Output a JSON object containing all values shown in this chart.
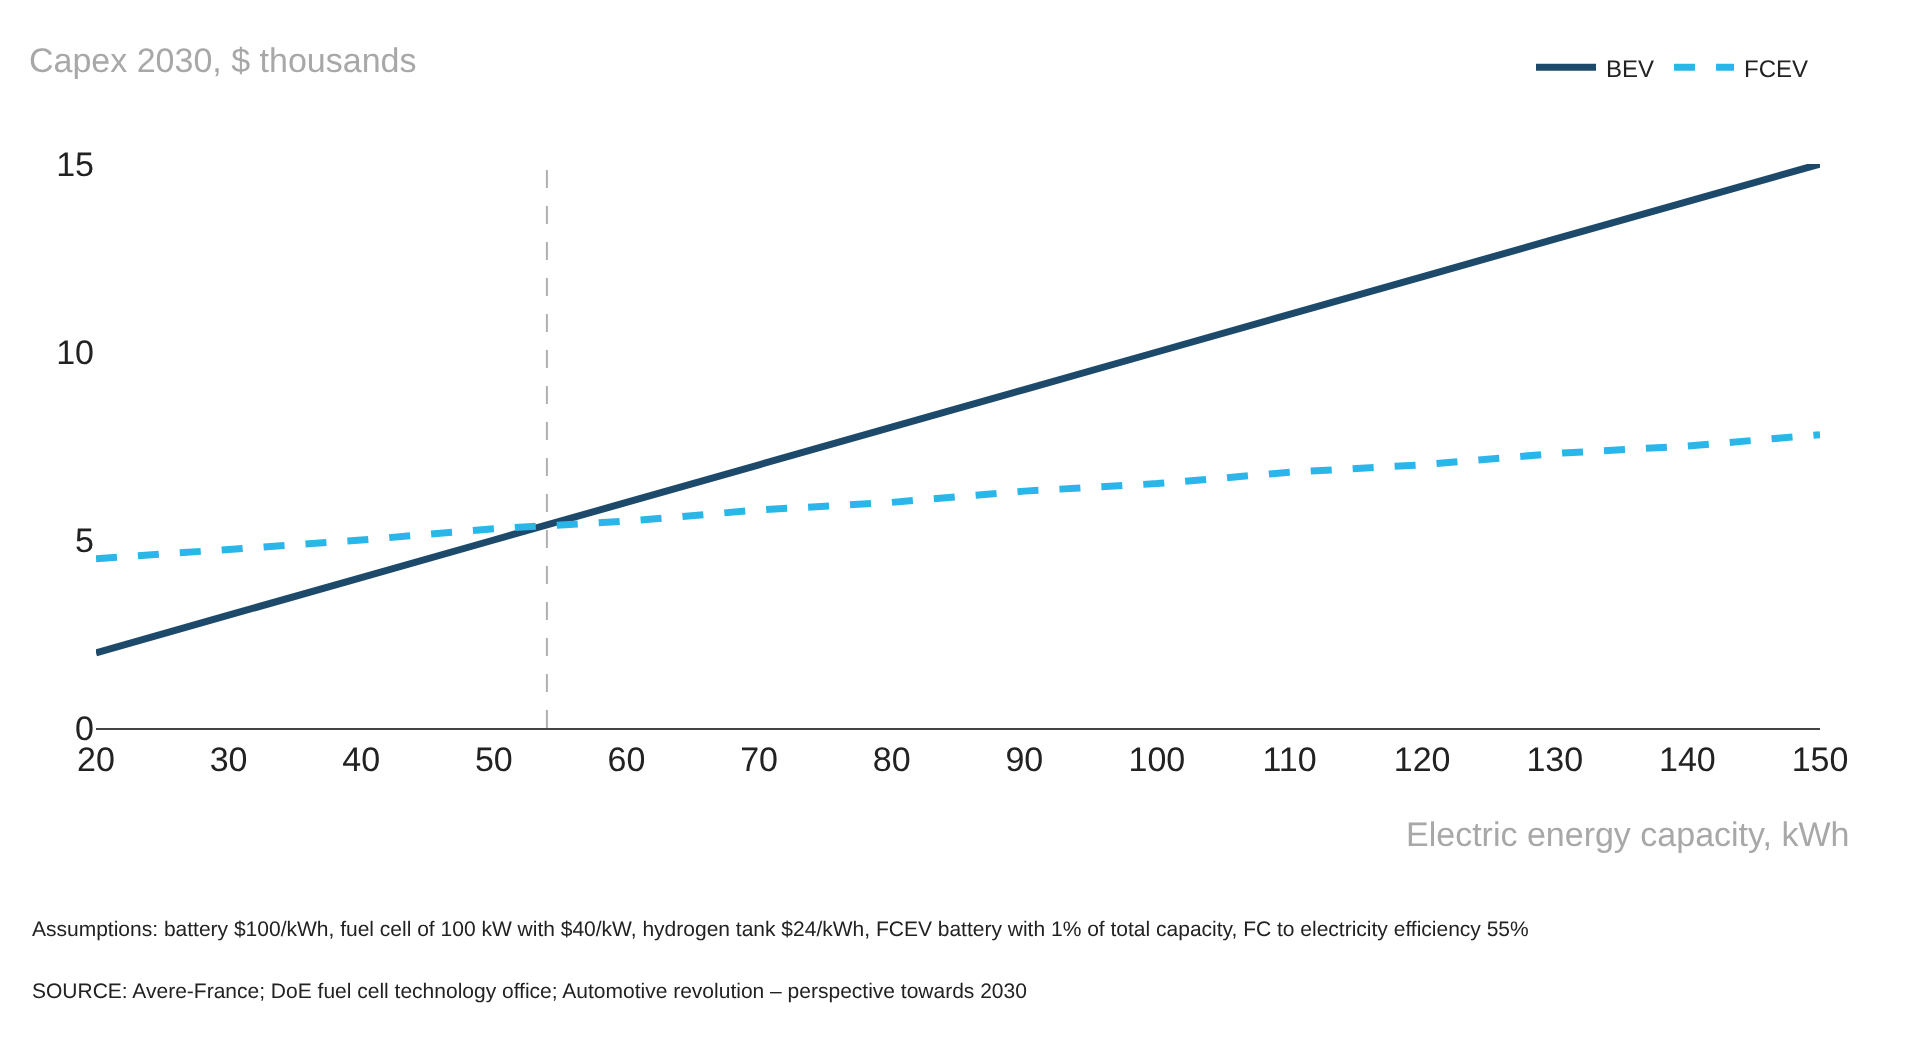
{
  "chart_data": {
    "type": "line",
    "title": "Capex 2030, $ thousands",
    "xlabel": "Electric energy capacity, kWh",
    "x": [
      20,
      30,
      40,
      50,
      60,
      70,
      80,
      90,
      100,
      110,
      120,
      130,
      140,
      150
    ],
    "series": [
      {
        "name": "BEV",
        "color": "#1d4a6a",
        "line_style": "solid",
        "values": [
          2,
          3,
          4,
          5,
          6,
          7,
          8,
          9,
          10,
          11,
          12,
          13,
          14,
          15
        ]
      },
      {
        "name": "FCEV",
        "color": "#2bb6ea",
        "line_style": "dashed",
        "values": [
          4.5,
          4.75,
          5.0,
          5.3,
          5.5,
          5.8,
          6.0,
          6.3,
          6.5,
          6.8,
          7.0,
          7.3,
          7.5,
          7.8
        ]
      }
    ],
    "xlim": [
      20,
      150
    ],
    "xticks": [
      20,
      30,
      40,
      50,
      60,
      70,
      80,
      90,
      100,
      110,
      120,
      130,
      140,
      150
    ],
    "ylim": [
      0,
      15
    ],
    "yticks": [
      0,
      5,
      10,
      15
    ],
    "ref_lines": [
      {
        "axis": "x",
        "value": 54,
        "color": "#b0b0b0",
        "line_style": "dashed"
      }
    ],
    "grid": false,
    "legend": "top right",
    "marker": "none",
    "annotations": [
      "Assumptions: battery $100/kWh, fuel cell of 100 kW with $40/kW, hydrogen tank $24/kWh, FCEV battery with 1% of total capacity, FC to electricity efficiency 55%",
      "SOURCE: Avere-France; DoE fuel cell technology office; Automotive revolution – perspective towards 2030"
    ]
  }
}
